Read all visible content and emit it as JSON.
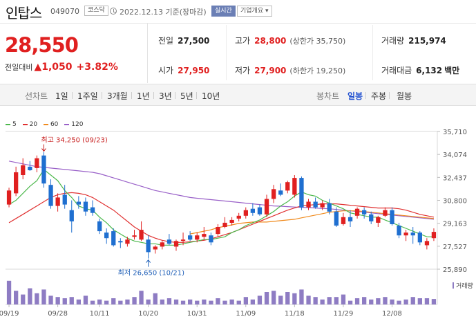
{
  "header": {
    "company_name": "인탑스",
    "stock_code": "049070",
    "market_badge": "코스닥",
    "date_text": "2022.12.13 기준(장마감)",
    "realtime_label": "실시간",
    "company_info_label": "기업개요 ▾"
  },
  "price": {
    "current": "28,550",
    "change_label": "전일대비",
    "change_value": "▲1,050",
    "change_rate": "+3.82%"
  },
  "stats": {
    "prev_close_label": "전일",
    "prev_close": "27,500",
    "high_label": "고가",
    "high": "28,800",
    "upper_limit": "(상한가 35,750)",
    "volume_label": "거래량",
    "volume": "215,974",
    "open_label": "시가",
    "open": "27,950",
    "low_label": "저가",
    "low": "27,900",
    "lower_limit": "(하한가 19,250)",
    "amount_label": "거래대금",
    "amount": "6,132",
    "amount_unit": "백만"
  },
  "periods": {
    "line_label": "선차트",
    "line_items": [
      "1일",
      "1주일",
      "3개월",
      "1년",
      "3년",
      "5년",
      "10년"
    ],
    "candle_label": "봉차트",
    "candle_items": [
      "일봉",
      "주봉",
      "월봉"
    ],
    "candle_active": "일봉"
  },
  "colors": {
    "up": "#e02020",
    "down": "#1f6fd0",
    "ma5": "#4cb84c",
    "ma20": "#e03030",
    "ma60": "#f08a1c",
    "ma120": "#9960c8",
    "volume": "#8e7cc3"
  },
  "chart_data": {
    "type": "candlestick",
    "legend": [
      {
        "name": "5",
        "color": "#4cb84c"
      },
      {
        "name": "20",
        "color": "#e03030"
      },
      {
        "name": "60",
        "color": "#f08a1c"
      },
      {
        "name": "120",
        "color": "#9960c8"
      }
    ],
    "ylim": [
      25890,
      35710
    ],
    "y_ticks": [
      "35,710",
      "34,074",
      "32,437",
      "30,800",
      "29,163",
      "27,527",
      "25,890"
    ],
    "x_ticks": [
      {
        "label": "09/19",
        "index": 0
      },
      {
        "label": "09/28",
        "index": 7
      },
      {
        "label": "10/11",
        "index": 13
      },
      {
        "label": "10/20",
        "index": 20
      },
      {
        "label": "10/31",
        "index": 27
      },
      {
        "label": "11/09",
        "index": 34
      },
      {
        "label": "11/18",
        "index": 41
      },
      {
        "label": "11/29",
        "index": 48
      },
      {
        "label": "12/08",
        "index": 55
      }
    ],
    "max_annotation": "최고 34,250 (09/23)",
    "min_annotation": "최저 26,650 (10/21)",
    "volume_label": "거래량",
    "candles": [
      {
        "o": 30500,
        "h": 31700,
        "l": 30300,
        "c": 31500
      },
      {
        "o": 31300,
        "h": 33200,
        "l": 31100,
        "c": 32800
      },
      {
        "o": 32600,
        "h": 33800,
        "l": 32300,
        "c": 33300
      },
      {
        "o": 33200,
        "h": 33600,
        "l": 32900,
        "c": 32950
      },
      {
        "o": 33100,
        "h": 34000,
        "l": 32800,
        "c": 33800
      },
      {
        "o": 34000,
        "h": 34250,
        "l": 31700,
        "c": 32000
      },
      {
        "o": 31900,
        "h": 32300,
        "l": 30200,
        "c": 30400
      },
      {
        "o": 30400,
        "h": 31300,
        "l": 30000,
        "c": 31000
      },
      {
        "o": 31200,
        "h": 31900,
        "l": 30200,
        "c": 30500
      },
      {
        "o": 30100,
        "h": 30800,
        "l": 28500,
        "c": 29300
      },
      {
        "o": 30700,
        "h": 31100,
        "l": 30200,
        "c": 30500
      },
      {
        "o": 30700,
        "h": 31000,
        "l": 29700,
        "c": 30000
      },
      {
        "o": 30300,
        "h": 30800,
        "l": 29700,
        "c": 29900
      },
      {
        "o": 29300,
        "h": 29500,
        "l": 28400,
        "c": 28600
      },
      {
        "o": 28500,
        "h": 28800,
        "l": 27700,
        "c": 28100
      },
      {
        "o": 28600,
        "h": 28800,
        "l": 27500,
        "c": 27600
      },
      {
        "o": 27900,
        "h": 28100,
        "l": 27400,
        "c": 27800
      },
      {
        "o": 27700,
        "h": 28200,
        "l": 27500,
        "c": 28000
      },
      {
        "o": 28200,
        "h": 28700,
        "l": 28000,
        "c": 28300
      },
      {
        "o": 28000,
        "h": 29300,
        "l": 27900,
        "c": 28700
      },
      {
        "o": 28000,
        "h": 28300,
        "l": 26650,
        "c": 27100
      },
      {
        "o": 27300,
        "h": 27600,
        "l": 27000,
        "c": 27500
      },
      {
        "o": 27500,
        "h": 27900,
        "l": 27300,
        "c": 27800
      },
      {
        "o": 28000,
        "h": 28400,
        "l": 27600,
        "c": 27700
      },
      {
        "o": 27500,
        "h": 28000,
        "l": 27200,
        "c": 27900
      },
      {
        "o": 27900,
        "h": 28500,
        "l": 27600,
        "c": 28000
      },
      {
        "o": 28300,
        "h": 28600,
        "l": 27900,
        "c": 28000
      },
      {
        "o": 28000,
        "h": 28500,
        "l": 27800,
        "c": 28300
      },
      {
        "o": 28200,
        "h": 28900,
        "l": 28000,
        "c": 28400
      },
      {
        "o": 28300,
        "h": 28500,
        "l": 27600,
        "c": 27800
      },
      {
        "o": 28400,
        "h": 29100,
        "l": 28200,
        "c": 28900
      },
      {
        "o": 28900,
        "h": 29600,
        "l": 28800,
        "c": 29200
      },
      {
        "o": 29200,
        "h": 29600,
        "l": 29000,
        "c": 29400
      },
      {
        "o": 29500,
        "h": 29900,
        "l": 29300,
        "c": 29700
      },
      {
        "o": 29700,
        "h": 30300,
        "l": 29500,
        "c": 30100
      },
      {
        "o": 30200,
        "h": 30600,
        "l": 29700,
        "c": 29900
      },
      {
        "o": 30300,
        "h": 30500,
        "l": 29700,
        "c": 29800
      },
      {
        "o": 29800,
        "h": 31200,
        "l": 29600,
        "c": 30900
      },
      {
        "o": 30900,
        "h": 31900,
        "l": 30600,
        "c": 31600
      },
      {
        "o": 31500,
        "h": 32000,
        "l": 31100,
        "c": 31200
      },
      {
        "o": 31500,
        "h": 32200,
        "l": 31300,
        "c": 32100
      },
      {
        "o": 31200,
        "h": 32600,
        "l": 31000,
        "c": 32400
      },
      {
        "o": 32400,
        "h": 32500,
        "l": 30100,
        "c": 30300
      },
      {
        "o": 30300,
        "h": 30900,
        "l": 30100,
        "c": 30700
      },
      {
        "o": 30700,
        "h": 31000,
        "l": 30200,
        "c": 30300
      },
      {
        "o": 30300,
        "h": 30800,
        "l": 30100,
        "c": 30600
      },
      {
        "o": 30600,
        "h": 30900,
        "l": 29800,
        "c": 30000
      },
      {
        "o": 30000,
        "h": 30300,
        "l": 28900,
        "c": 29000
      },
      {
        "o": 29100,
        "h": 29900,
        "l": 29000,
        "c": 29600
      },
      {
        "o": 29600,
        "h": 30100,
        "l": 28900,
        "c": 29300
      },
      {
        "o": 29700,
        "h": 30300,
        "l": 29500,
        "c": 30200
      },
      {
        "o": 30100,
        "h": 30300,
        "l": 29500,
        "c": 29800
      },
      {
        "o": 29800,
        "h": 30000,
        "l": 29100,
        "c": 29300
      },
      {
        "o": 29200,
        "h": 29700,
        "l": 28900,
        "c": 29600
      },
      {
        "o": 29700,
        "h": 30300,
        "l": 29600,
        "c": 30100
      },
      {
        "o": 30100,
        "h": 30300,
        "l": 29000,
        "c": 29100
      },
      {
        "o": 29000,
        "h": 29200,
        "l": 28100,
        "c": 28300
      },
      {
        "o": 28300,
        "h": 28700,
        "l": 27900,
        "c": 28500
      },
      {
        "o": 28500,
        "h": 28900,
        "l": 27700,
        "c": 28300
      },
      {
        "o": 28500,
        "h": 28600,
        "l": 27600,
        "c": 27800
      },
      {
        "o": 27600,
        "h": 28100,
        "l": 27300,
        "c": 27900
      },
      {
        "o": 28100,
        "h": 28800,
        "l": 27900,
        "c": 28550
      }
    ],
    "volumes": [
      0.95,
      0.55,
      0.4,
      0.65,
      0.45,
      0.6,
      0.35,
      0.3,
      0.25,
      0.3,
      0.2,
      0.35,
      0.15,
      0.2,
      0.15,
      0.25,
      0.15,
      0.2,
      0.3,
      0.55,
      0.2,
      0.45,
      0.2,
      0.25,
      0.2,
      0.15,
      0.2,
      0.15,
      0.2,
      0.15,
      0.25,
      0.15,
      0.2,
      0.15,
      0.3,
      0.2,
      0.35,
      0.5,
      0.55,
      0.35,
      0.5,
      0.45,
      0.6,
      0.35,
      0.3,
      0.2,
      0.3,
      0.3,
      0.4,
      0.15,
      0.25,
      0.3,
      0.2,
      0.25,
      0.3,
      0.2,
      0.15,
      0.2,
      0.3,
      0.25,
      0.25,
      0.22
    ],
    "ma": {
      "ma5": [
        30500,
        30800,
        31300,
        31800,
        32200,
        33000,
        32600,
        32200,
        31500,
        31000,
        30400,
        30200,
        30100,
        29600,
        29200,
        28700,
        28400,
        28100,
        27900,
        27800,
        27700,
        27700,
        27600,
        27600,
        27600,
        27700,
        27800,
        27900,
        28000,
        28000,
        28100,
        28200,
        28500,
        28700,
        29000,
        29200,
        29400,
        29700,
        30000,
        30400,
        30700,
        31100,
        31400,
        31200,
        31100,
        30800,
        30600,
        30400,
        30200,
        29900,
        29800,
        29700,
        29600,
        29600,
        29400,
        29200,
        29000,
        28800,
        28600,
        28400,
        28200,
        28200
      ],
      "ma20": [
        29200,
        29500,
        29800,
        30100,
        30400,
        30700,
        31000,
        31200,
        31300,
        31350,
        31300,
        31200,
        31000,
        30700,
        30400,
        30100,
        29700,
        29300,
        28900,
        28600,
        28300,
        28100,
        27950,
        27850,
        27800,
        27800,
        27850,
        27900,
        27950,
        28050,
        28200,
        28350,
        28500,
        28700,
        28900,
        29100,
        29300,
        29500,
        29700,
        29900,
        30100,
        30250,
        30400,
        30450,
        30500,
        30550,
        30550,
        30550,
        30500,
        30450,
        30400,
        30350,
        30300,
        30250,
        30250,
        30250,
        30200,
        30100,
        29950,
        29800,
        29700,
        29600
      ],
      "ma60": [
        null,
        null,
        null,
        null,
        null,
        null,
        null,
        null,
        null,
        null,
        null,
        null,
        null,
        null,
        null,
        null,
        null,
        null,
        null,
        null,
        null,
        null,
        null,
        null,
        null,
        null,
        28400,
        28500,
        28600,
        28700,
        28850,
        28950,
        29050,
        29150,
        29200,
        29250,
        29250,
        29250,
        29300,
        29350,
        29400,
        29450,
        29550,
        29650,
        29750,
        29850,
        29950,
        30000,
        30050,
        30050,
        30050,
        30000,
        29950,
        29900,
        29850,
        29800,
        29750,
        29700,
        29650,
        29600,
        29550,
        29500
      ],
      "ma120": [
        33600,
        33500,
        33400,
        33300,
        33200,
        33150,
        33100,
        33050,
        33000,
        32950,
        32900,
        32850,
        32800,
        32700,
        32550,
        32400,
        32250,
        32100,
        31950,
        31800,
        31650,
        31500,
        31400,
        31300,
        31200,
        31100,
        31000,
        30950,
        30900,
        30850,
        30800,
        30750,
        30700,
        30650,
        30600,
        30550,
        30500,
        30450,
        30400,
        30380,
        30350,
        30320,
        30300,
        30280,
        30250,
        30220,
        30200,
        30150,
        30100,
        30050,
        30000,
        29950,
        29900,
        29850,
        29800,
        29750,
        29700,
        29650,
        29600,
        29550,
        29500,
        29450
      ]
    }
  }
}
